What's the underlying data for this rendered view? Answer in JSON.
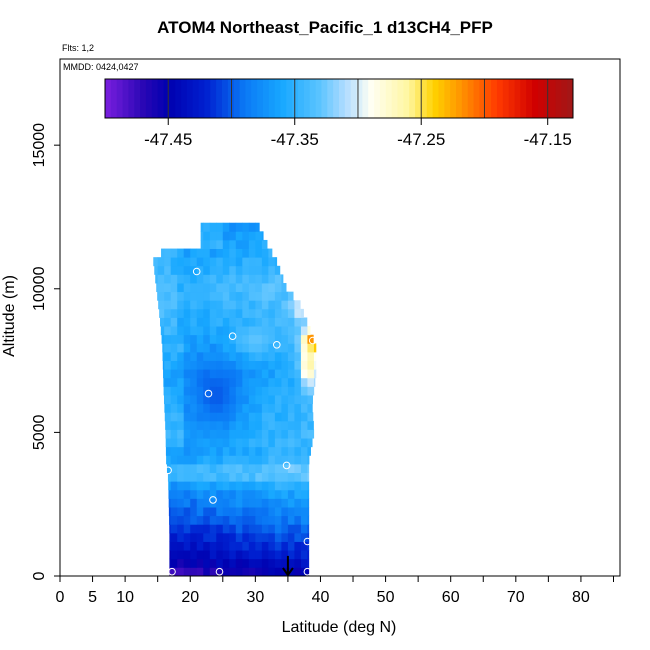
{
  "chart_data": {
    "type": "heatmap",
    "title": "ATOM4 Northeast_Pacific_1 d13CH4_PFP",
    "flights_label": "Flts: 1,2",
    "mmdd_label": "MMDD: 0424,0427",
    "xlabel": "Latitude (deg N)",
    "ylabel": "Altitude (m)",
    "xlim": [
      0,
      86
    ],
    "ylim": [
      0,
      18000
    ],
    "x_ticks": [
      0,
      5,
      10,
      20,
      30,
      40,
      50,
      60,
      70,
      80
    ],
    "x_minor_ticks": [
      15,
      25,
      35,
      45,
      55,
      65,
      75,
      85
    ],
    "y_ticks": [
      0,
      5000,
      10000,
      15000
    ],
    "grid": false,
    "colorbar": {
      "range": [
        -47.5,
        -47.13
      ],
      "ticks": [
        -47.45,
        -47.35,
        -47.25,
        -47.15
      ],
      "tick_labels": [
        "-47.45",
        "-47.35",
        "-47.25",
        "-47.15"
      ],
      "divisions": [
        -47.45,
        -47.4,
        -47.35,
        -47.3,
        -47.25,
        -47.2,
        -47.15
      ],
      "color_stops": [
        {
          "v": -47.5,
          "c": "#7b1fdf"
        },
        {
          "v": -47.47,
          "c": "#2a07b5"
        },
        {
          "v": -47.45,
          "c": "#0000b0"
        },
        {
          "v": -47.42,
          "c": "#0020d0"
        },
        {
          "v": -47.39,
          "c": "#0a78f5"
        },
        {
          "v": -47.36,
          "c": "#18a8ff"
        },
        {
          "v": -47.33,
          "c": "#5cc4ff"
        },
        {
          "v": -47.31,
          "c": "#b0dcff"
        },
        {
          "v": -47.29,
          "c": "#fffff4"
        },
        {
          "v": -47.26,
          "c": "#fff6a0"
        },
        {
          "v": -47.24,
          "c": "#ffd200"
        },
        {
          "v": -47.22,
          "c": "#ff9800"
        },
        {
          "v": -47.19,
          "c": "#ff3a00"
        },
        {
          "v": -47.16,
          "c": "#d00000"
        },
        {
          "v": -47.13,
          "c": "#a01818"
        }
      ]
    },
    "field": {
      "lat_min_by_alt": [
        [
          0,
          16.8
        ],
        [
          1500,
          16.8
        ],
        [
          3400,
          16.6
        ],
        [
          4000,
          16.3
        ],
        [
          5000,
          16.2
        ],
        [
          6500,
          15.9
        ],
        [
          8000,
          15.7
        ],
        [
          9000,
          15.3
        ],
        [
          10000,
          14.8
        ],
        [
          11000,
          14.3
        ],
        [
          11200,
          14.3
        ],
        [
          11500,
          21.6
        ],
        [
          12200,
          21.6
        ]
      ],
      "lat_max_by_alt": [
        [
          0,
          38.2
        ],
        [
          4000,
          38.2
        ],
        [
          5000,
          39.0
        ],
        [
          6000,
          38.7
        ],
        [
          7000,
          39.3
        ],
        [
          8000,
          39.3
        ],
        [
          8800,
          38.0
        ],
        [
          9500,
          36.8
        ],
        [
          10000,
          34.8
        ],
        [
          11000,
          33.2
        ],
        [
          11500,
          31.9
        ],
        [
          12200,
          30.5
        ]
      ],
      "profile": [
        [
          0,
          -47.47
        ],
        [
          300,
          -47.45
        ],
        [
          800,
          -47.43
        ],
        [
          1500,
          -47.41
        ],
        [
          2200,
          -47.39
        ],
        [
          3000,
          -47.37
        ],
        [
          3600,
          -47.33
        ],
        [
          4200,
          -47.36
        ],
        [
          5000,
          -47.355
        ],
        [
          6000,
          -47.36
        ],
        [
          7000,
          -47.37
        ],
        [
          8000,
          -47.36
        ],
        [
          9000,
          -47.35
        ],
        [
          10000,
          -47.34
        ],
        [
          11000,
          -47.355
        ],
        [
          12000,
          -47.37
        ]
      ],
      "hotspots": [
        {
          "lat": 39.2,
          "alt": 8200,
          "value": -47.15,
          "r_lat": 1.6,
          "r_alt": 380
        },
        {
          "lat": 38.2,
          "alt": 7400,
          "value": -47.26,
          "r_lat": 1.4,
          "r_alt": 900
        },
        {
          "lat": 36.8,
          "alt": 9300,
          "value": -47.3,
          "r_lat": 1.2,
          "r_alt": 500
        },
        {
          "lat": 24.0,
          "alt": 6300,
          "value": -47.4,
          "r_lat": 4.0,
          "r_alt": 1300
        },
        {
          "lat": 30.0,
          "alt": 8200,
          "value": -47.33,
          "r_lat": 3.0,
          "r_alt": 500
        }
      ]
    },
    "sample_points": [
      {
        "lat": 17.2,
        "alt": 150
      },
      {
        "lat": 24.5,
        "alt": 150
      },
      {
        "lat": 38.0,
        "alt": 150
      },
      {
        "lat": 38.0,
        "alt": 1200
      },
      {
        "lat": 23.5,
        "alt": 2650
      },
      {
        "lat": 16.6,
        "alt": 3680
      },
      {
        "lat": 34.8,
        "alt": 3850
      },
      {
        "lat": 22.8,
        "alt": 6350
      },
      {
        "lat": 26.5,
        "alt": 8350
      },
      {
        "lat": 33.3,
        "alt": 8050
      },
      {
        "lat": 21.0,
        "alt": 10600
      },
      {
        "lat": 38.8,
        "alt": 8200
      }
    ],
    "arrow": {
      "lat": 35.0,
      "alt_top": 700,
      "alt_bottom": 0
    }
  }
}
